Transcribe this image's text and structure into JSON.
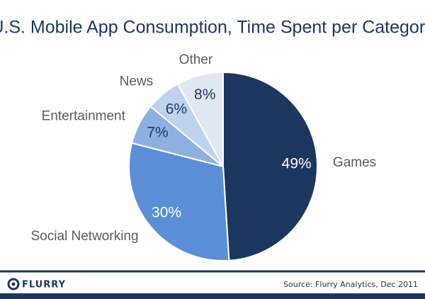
{
  "chart_data": {
    "type": "pie",
    "title": "U.S. Mobile App Consumption, Time Spent per Category",
    "categories": [
      "Games",
      "Social Networking",
      "Entertainment",
      "News",
      "Other"
    ],
    "values": [
      49,
      30,
      7,
      6,
      8
    ],
    "value_labels": [
      "49%",
      "30%",
      "7%",
      "6%",
      "8%"
    ],
    "colors": [
      "#1b365f",
      "#5b8ed6",
      "#8eb0e1",
      "#bfd3ef",
      "#dfe7f3"
    ]
  },
  "footer": {
    "logo": "FLURRY",
    "source": "Source: Flurry Analytics, Dec 2011"
  }
}
